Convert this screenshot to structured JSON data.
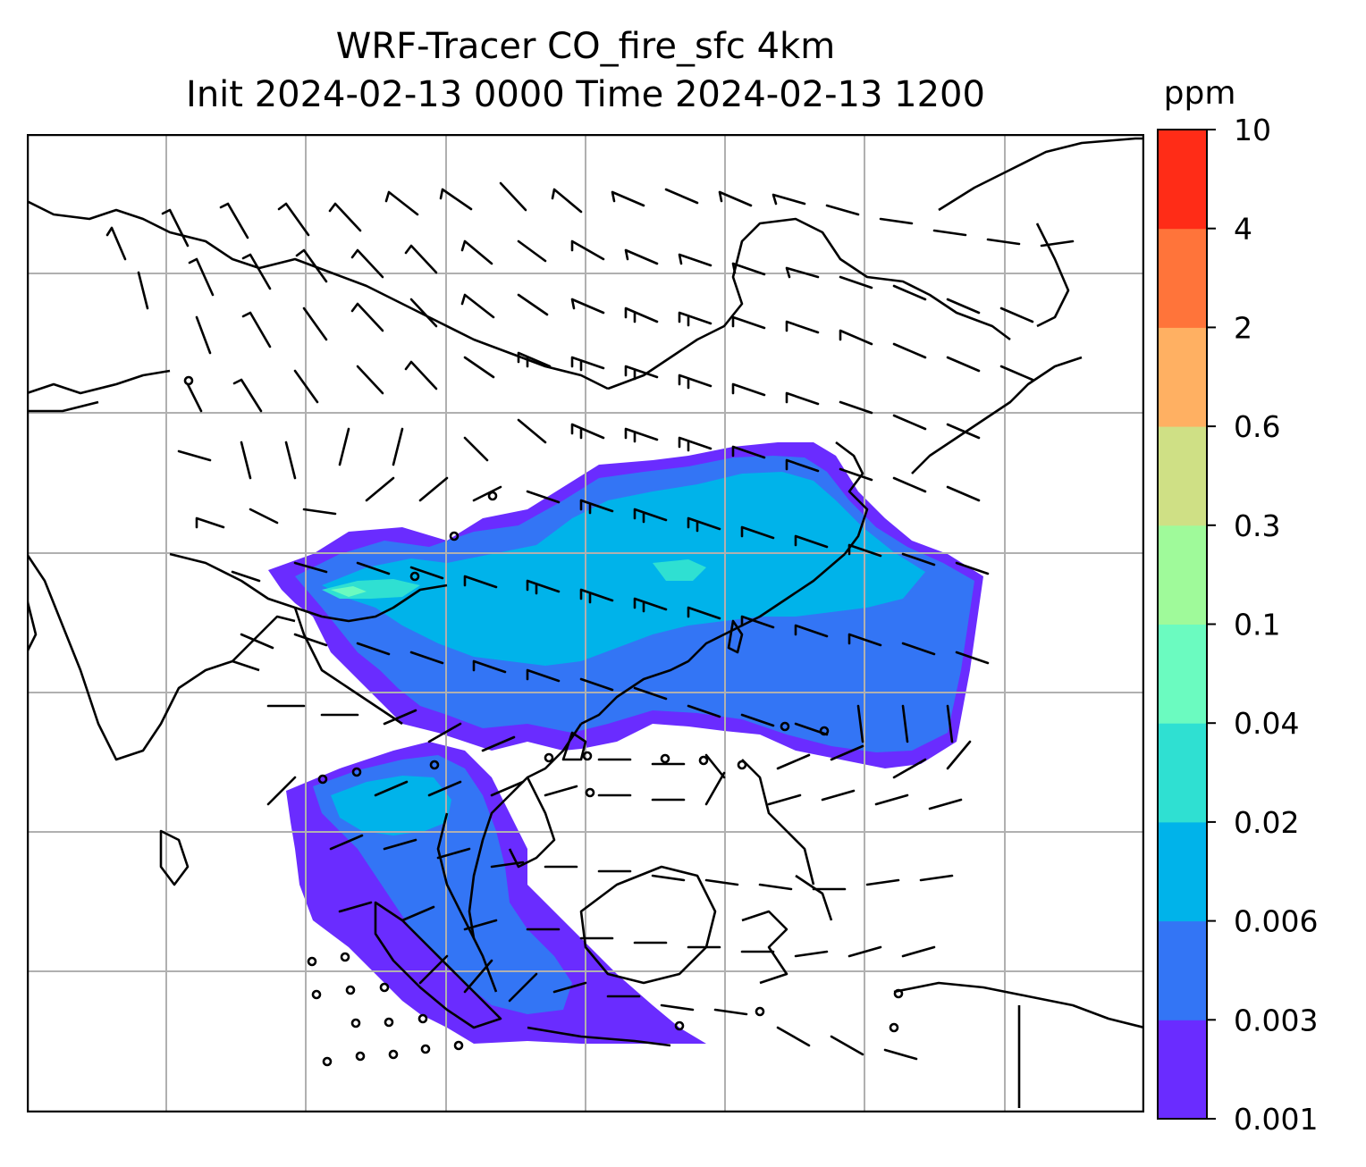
{
  "title": {
    "line1": "WRF-Tracer CO_fire_sfc 4km",
    "line2": "Init 2024-02-13 0000 Time 2024-02-13 1200"
  },
  "colorbar": {
    "unit": "ppm",
    "levels": [
      "0.001",
      "0.003",
      "0.006",
      "0.02",
      "0.04",
      "0.1",
      "0.3",
      "0.6",
      "2",
      "4",
      "10"
    ],
    "colors": [
      "#6a2cff",
      "#3375f5",
      "#00b3ea",
      "#2fe0d2",
      "#6bfbc0",
      "#9ffa9a",
      "#cfe085",
      "#ffb062",
      "#ff743a",
      "#ff2c17"
    ]
  },
  "map": {
    "frame_color": "#000000",
    "gridline_color": "#b0b0b0",
    "features": [
      "coastlines",
      "country-borders",
      "wind-barbs",
      "gridlines",
      "co-concentration-field"
    ]
  }
}
